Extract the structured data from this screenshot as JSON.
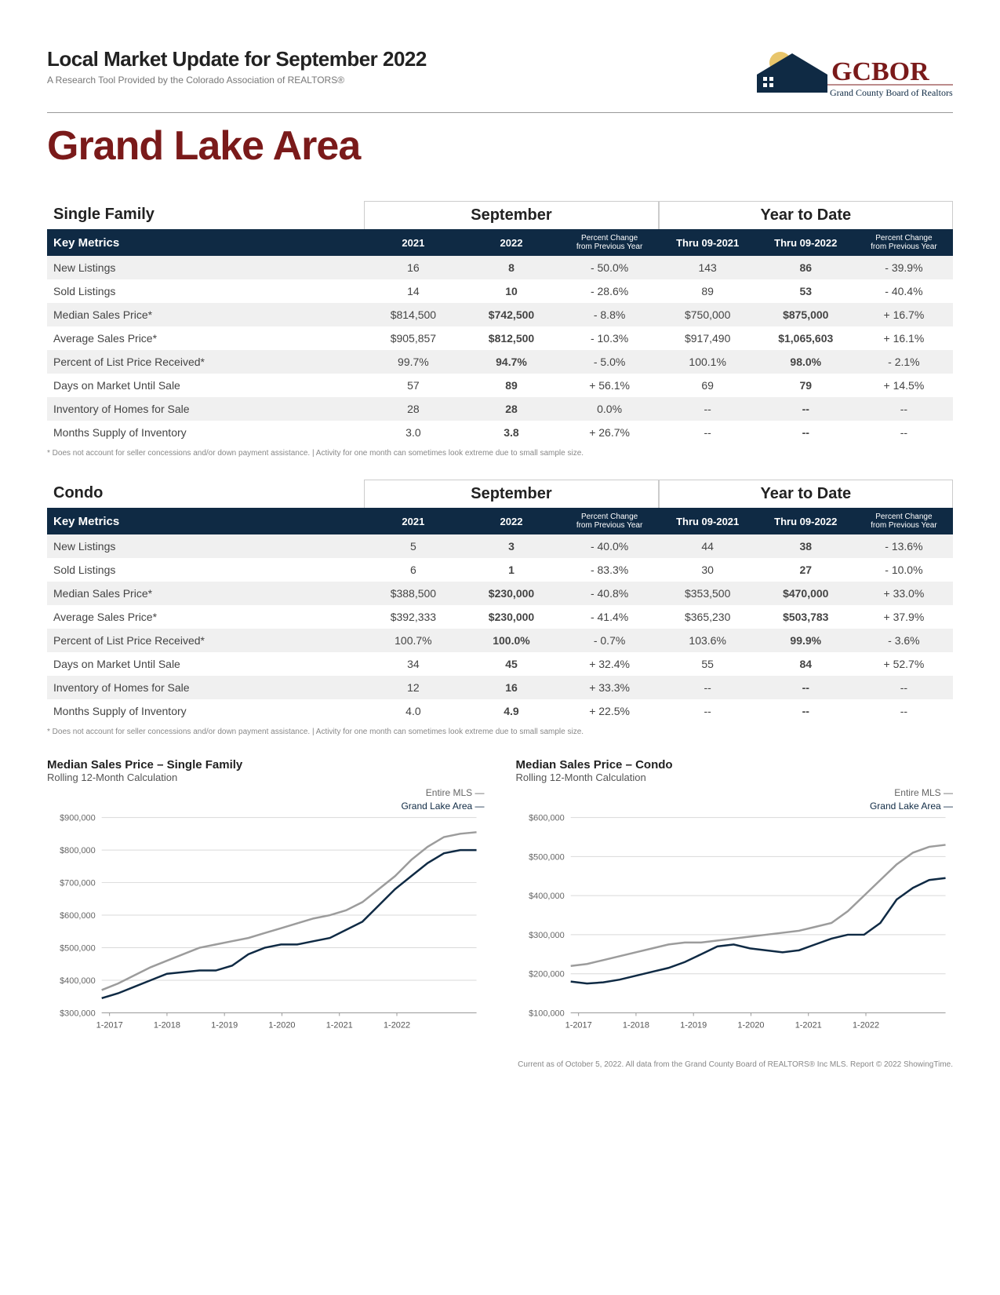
{
  "header": {
    "title": "Local Market Update for September 2022",
    "subtitle": "A Research Tool Provided by the Colorado Association of REALTORS®",
    "logo_main": "GCBOR",
    "logo_sub": "Grand County Board of Realtors, Inc."
  },
  "main_title": "Grand Lake Area",
  "colors": {
    "navy": "#0f2a44",
    "maroon": "#7a1a1a",
    "grid": "#d9d9d9",
    "series_mls": "#9c9c9c",
    "series_local": "#0f2a44"
  },
  "tables": [
    {
      "section": "Single Family",
      "period_labels": [
        "September",
        "Year to Date"
      ],
      "col_headers": [
        "Key Metrics",
        "2021",
        "2022",
        "Percent Change from Previous Year",
        "Thru 09-2021",
        "Thru 09-2022",
        "Percent Change from Previous Year"
      ],
      "rows": [
        [
          "New Listings",
          "16",
          "8",
          "- 50.0%",
          "143",
          "86",
          "- 39.9%"
        ],
        [
          "Sold Listings",
          "14",
          "10",
          "- 28.6%",
          "89",
          "53",
          "- 40.4%"
        ],
        [
          "Median Sales Price*",
          "$814,500",
          "$742,500",
          "- 8.8%",
          "$750,000",
          "$875,000",
          "+ 16.7%"
        ],
        [
          "Average Sales Price*",
          "$905,857",
          "$812,500",
          "- 10.3%",
          "$917,490",
          "$1,065,603",
          "+ 16.1%"
        ],
        [
          "Percent of List Price Received*",
          "99.7%",
          "94.7%",
          "- 5.0%",
          "100.1%",
          "98.0%",
          "- 2.1%"
        ],
        [
          "Days on Market Until Sale",
          "57",
          "89",
          "+ 56.1%",
          "69",
          "79",
          "+ 14.5%"
        ],
        [
          "Inventory of Homes for Sale",
          "28",
          "28",
          "0.0%",
          "--",
          "--",
          "--"
        ],
        [
          "Months Supply of Inventory",
          "3.0",
          "3.8",
          "+ 26.7%",
          "--",
          "--",
          "--"
        ]
      ]
    },
    {
      "section": "Condo",
      "period_labels": [
        "September",
        "Year to Date"
      ],
      "col_headers": [
        "Key Metrics",
        "2021",
        "2022",
        "Percent Change from Previous Year",
        "Thru 09-2021",
        "Thru 09-2022",
        "Percent Change from Previous Year"
      ],
      "rows": [
        [
          "New Listings",
          "5",
          "3",
          "- 40.0%",
          "44",
          "38",
          "- 13.6%"
        ],
        [
          "Sold Listings",
          "6",
          "1",
          "- 83.3%",
          "30",
          "27",
          "- 10.0%"
        ],
        [
          "Median Sales Price*",
          "$388,500",
          "$230,000",
          "- 40.8%",
          "$353,500",
          "$470,000",
          "+ 33.0%"
        ],
        [
          "Average Sales Price*",
          "$392,333",
          "$230,000",
          "- 41.4%",
          "$365,230",
          "$503,783",
          "+ 37.9%"
        ],
        [
          "Percent of List Price Received*",
          "100.7%",
          "100.0%",
          "- 0.7%",
          "103.6%",
          "99.9%",
          "- 3.6%"
        ],
        [
          "Days on Market Until Sale",
          "34",
          "45",
          "+ 32.4%",
          "55",
          "84",
          "+ 52.7%"
        ],
        [
          "Inventory of Homes for Sale",
          "12",
          "16",
          "+ 33.3%",
          "--",
          "--",
          "--"
        ],
        [
          "Months Supply of Inventory",
          "4.0",
          "4.9",
          "+ 22.5%",
          "--",
          "--",
          "--"
        ]
      ]
    }
  ],
  "footnote": "* Does not account for seller concessions and/or down payment assistance.  |  Activity for one month can sometimes look extreme due to small sample size.",
  "charts": [
    {
      "title": "Median Sales Price – Single Family",
      "subtitle": "Rolling 12-Month Calculation",
      "legend": [
        "Entire MLS  —",
        "Grand Lake Area  —"
      ],
      "ylim": [
        300000,
        900000
      ],
      "ytick_step": 100000,
      "ytick_labels": [
        "$300,000",
        "$400,000",
        "$500,000",
        "$600,000",
        "$700,000",
        "$800,000",
        "$900,000"
      ],
      "x_labels": [
        "1-2017",
        "1-2018",
        "1-2019",
        "1-2020",
        "1-2021",
        "1-2022"
      ],
      "series": {
        "mls": [
          370,
          390,
          415,
          440,
          460,
          480,
          500,
          510,
          520,
          530,
          545,
          560,
          575,
          590,
          600,
          615,
          640,
          680,
          720,
          770,
          810,
          840,
          850,
          855
        ],
        "local": [
          345,
          360,
          380,
          400,
          420,
          425,
          430,
          430,
          445,
          480,
          500,
          510,
          510,
          520,
          530,
          555,
          580,
          630,
          680,
          720,
          760,
          790,
          800,
          800
        ]
      },
      "line_width": 2.5
    },
    {
      "title": "Median Sales Price – Condo",
      "subtitle": "Rolling 12-Month Calculation",
      "legend": [
        "Entire MLS  —",
        "Grand Lake Area  —"
      ],
      "ylim": [
        100000,
        600000
      ],
      "ytick_step": 100000,
      "ytick_labels": [
        "$100,000",
        "$200,000",
        "$300,000",
        "$400,000",
        "$500,000",
        "$600,000"
      ],
      "x_labels": [
        "1-2017",
        "1-2018",
        "1-2019",
        "1-2020",
        "1-2021",
        "1-2022"
      ],
      "series": {
        "mls": [
          220,
          225,
          235,
          245,
          255,
          265,
          275,
          280,
          280,
          285,
          290,
          295,
          300,
          305,
          310,
          320,
          330,
          360,
          400,
          440,
          480,
          510,
          525,
          530
        ],
        "local": [
          180,
          175,
          178,
          185,
          195,
          205,
          215,
          230,
          250,
          270,
          275,
          265,
          260,
          255,
          260,
          275,
          290,
          300,
          300,
          330,
          390,
          420,
          440,
          445
        ]
      },
      "line_width": 2.5
    }
  ],
  "page_footer": "Current as of October 5, 2022. All data from the Grand County Board of REALTORS® Inc MLS. Report © 2022 ShowingTime."
}
